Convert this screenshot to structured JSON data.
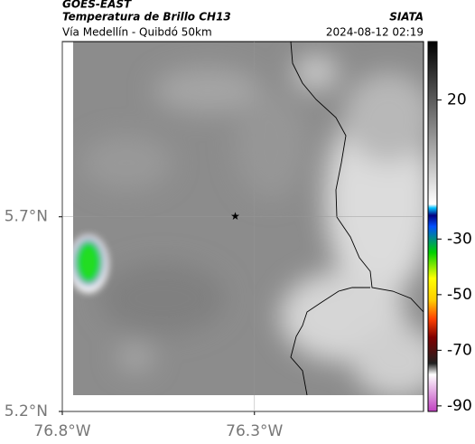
{
  "header": {
    "source": "GOES-EAST",
    "title": "Temperatura de Brillo CH13",
    "credit": "SIATA",
    "subtitle": "Vía Medellín - Quibdó 50km",
    "timestamp": "2024-08-12 02:19"
  },
  "map": {
    "xlim": [
      -76.8,
      -75.86
    ],
    "ylim": [
      5.2,
      6.15
    ],
    "xticks": [
      {
        "value": -76.8,
        "label": "76.8°W"
      },
      {
        "value": -76.3,
        "label": "76.3°W"
      }
    ],
    "yticks": [
      {
        "value": 5.2,
        "label": "5.2°N"
      },
      {
        "value": 5.7,
        "label": "5.7°N"
      }
    ],
    "marker": {
      "lon": -76.35,
      "lat": 5.7
    }
  },
  "colorbar": {
    "clim": [
      -92,
      41
    ],
    "ticks": [
      20,
      -30,
      -50,
      -70,
      -90
    ]
  }
}
